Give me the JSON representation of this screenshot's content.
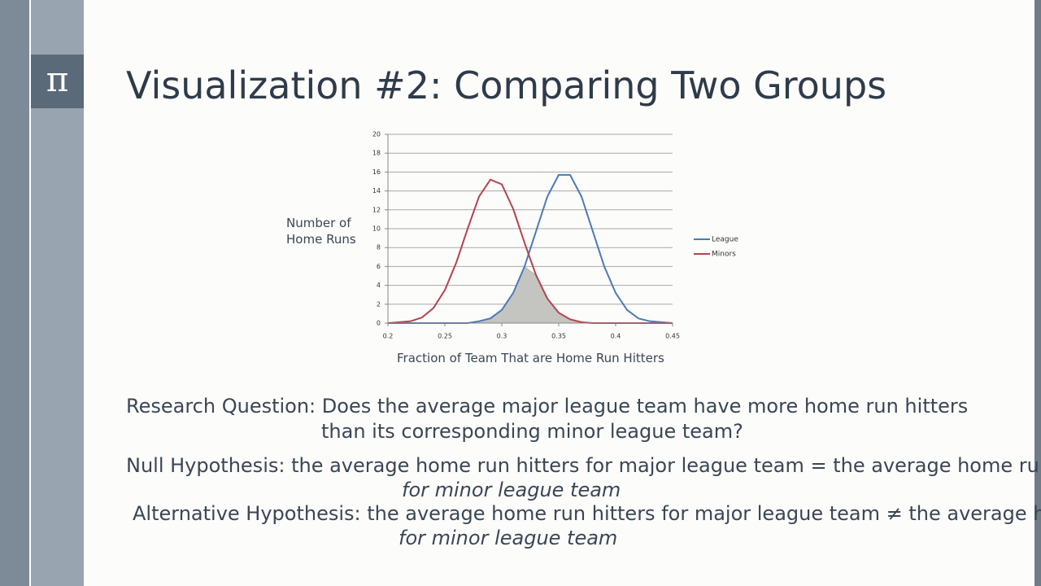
{
  "slide": {
    "icon": "π",
    "title": "Visualization #2: Comparing Two Groups",
    "research_question": "Research Question: Does the average major league team have more home run hitters than its corresponding minor league team?",
    "null_hypothesis": "Null Hypothesis: the average home run hitters for major league team = the average home run hitters",
    "null_hypothesis_continuation": "for minor league team",
    "alternative_hypothesis": "Alternative Hypothesis: the average home run hitters for major league team ≠  the average home run hitters",
    "alternative_hypothesis_continuation": "for minor league team"
  },
  "chart_data": {
    "type": "line",
    "y_label": "Number of Home Runs",
    "x_label": "Fraction of Team That are Home Run Hitters",
    "x": [
      0.2,
      0.21,
      0.22,
      0.23,
      0.24,
      0.25,
      0.26,
      0.27,
      0.28,
      0.29,
      0.3,
      0.31,
      0.32,
      0.33,
      0.34,
      0.35,
      0.36,
      0.37,
      0.38,
      0.39,
      0.4,
      0.41,
      0.42,
      0.43,
      0.44,
      0.45
    ],
    "series": [
      {
        "name": "League",
        "color": "#4a7ab8",
        "values": [
          0,
          0,
          0,
          0,
          0,
          0,
          0,
          0,
          0.2,
          0.5,
          1.4,
          3.2,
          6.0,
          9.7,
          13.4,
          15.7,
          15.7,
          13.4,
          9.7,
          6.0,
          3.2,
          1.4,
          0.5,
          0.2,
          0.1,
          0
        ]
      },
      {
        "name": "Minors",
        "color": "#b5434e",
        "values": [
          0,
          0.1,
          0.2,
          0.6,
          1.6,
          3.5,
          6.4,
          10.0,
          13.4,
          15.2,
          14.7,
          12.1,
          8.5,
          5.1,
          2.6,
          1.1,
          0.4,
          0.1,
          0,
          0,
          0,
          0,
          0,
          0,
          0,
          0
        ]
      }
    ],
    "overlap_shaded": true,
    "overlap_color": "#c4c4c0",
    "xlim": [
      0.2,
      0.45
    ],
    "xticks": [
      0.2,
      0.25,
      0.3,
      0.35,
      0.4,
      0.45
    ],
    "ylim": [
      0,
      20
    ],
    "yticks": [
      0,
      2,
      4,
      6,
      8,
      10,
      12,
      14,
      16,
      18,
      20
    ],
    "grid": true,
    "legend": "right"
  }
}
